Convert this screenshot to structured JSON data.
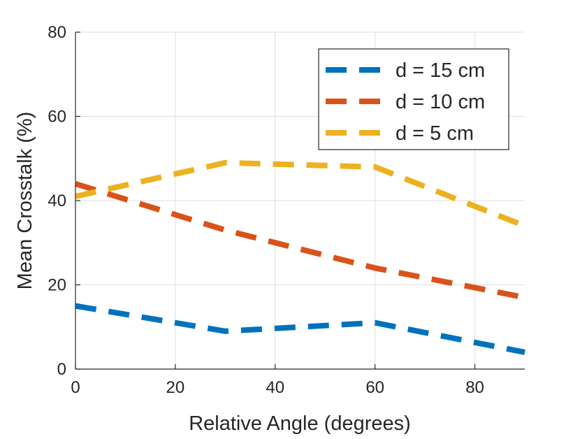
{
  "chart_data": {
    "type": "line",
    "title": "",
    "xlabel": "Relative Angle (degrees)",
    "ylabel": "Mean Crosstalk (%)",
    "xlim": [
      0,
      90
    ],
    "ylim": [
      0,
      80
    ],
    "xticks": [
      0,
      20,
      40,
      60,
      80
    ],
    "yticks": [
      0,
      20,
      40,
      60,
      80
    ],
    "grid": true,
    "legend_position": "top-right",
    "line_style": "dashed",
    "x": [
      0,
      30,
      60,
      90
    ],
    "series": [
      {
        "name": "d = 15 cm",
        "color": "#0072BD",
        "values": [
          15,
          9,
          11,
          4
        ]
      },
      {
        "name": "d = 10 cm",
        "color": "#D95319",
        "values": [
          44,
          33,
          24,
          17
        ]
      },
      {
        "name": "d = 5 cm",
        "color": "#EDB120",
        "values": [
          41,
          49,
          48,
          34
        ]
      }
    ]
  }
}
